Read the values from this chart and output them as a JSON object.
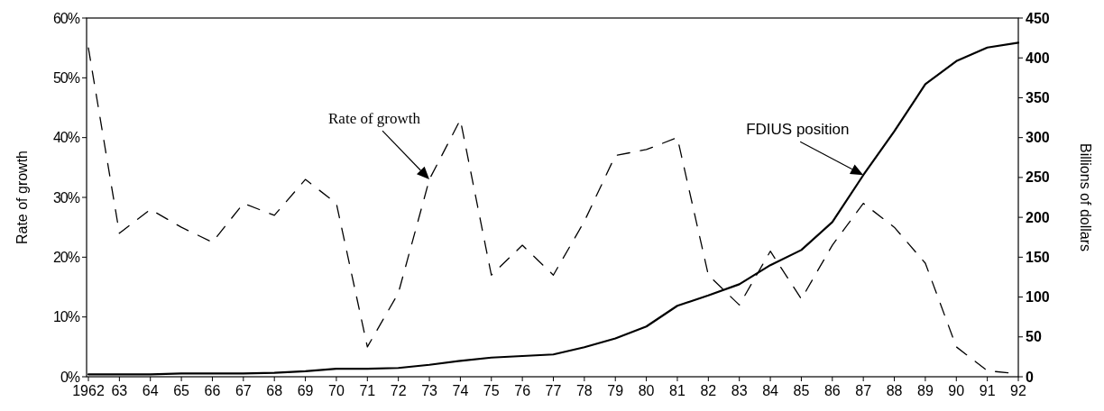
{
  "chart_data": {
    "type": "line",
    "categories": [
      "1962",
      "63",
      "64",
      "65",
      "66",
      "67",
      "68",
      "69",
      "70",
      "71",
      "72",
      "73",
      "74",
      "75",
      "76",
      "77",
      "78",
      "79",
      "80",
      "81",
      "82",
      "83",
      "84",
      "85",
      "86",
      "87",
      "88",
      "89",
      "90",
      "91",
      "92"
    ],
    "series": [
      {
        "name": "Rate of growth",
        "color": "#000000",
        "line_style": "dashed",
        "axis": "y",
        "values": [
          55,
          24,
          28,
          25,
          22.5,
          29,
          27,
          33,
          29,
          5,
          14,
          33,
          43,
          17,
          22,
          17,
          26,
          37,
          38,
          40,
          17,
          12,
          21,
          13,
          22,
          29,
          25,
          19,
          5,
          1,
          0.5
        ]
      },
      {
        "name": "FDIUS position",
        "color": "#000000",
        "line_style": "solid",
        "axis": "y2",
        "values": [
          3,
          3,
          3,
          4,
          4,
          4,
          5,
          7,
          10,
          10,
          11,
          15,
          20,
          24,
          26,
          28,
          37,
          48,
          63,
          89,
          102,
          116,
          140,
          159,
          194,
          253,
          308,
          367,
          396,
          413,
          419
        ]
      }
    ],
    "ylabel": "Rate of growth",
    "y2label": "Billions of dollars",
    "ylim": [
      0,
      60
    ],
    "yticks": [
      {
        "value": 0,
        "label": "0%"
      },
      {
        "value": 10,
        "label": "10%"
      },
      {
        "value": 20,
        "label": "20%"
      },
      {
        "value": 30,
        "label": "30%"
      },
      {
        "value": 40,
        "label": "40%"
      },
      {
        "value": 50,
        "label": "50%"
      },
      {
        "value": 60,
        "label": "60%"
      }
    ],
    "y2lim": [
      0,
      450
    ],
    "y2ticks": [
      0,
      50,
      100,
      150,
      200,
      250,
      300,
      350,
      400,
      450
    ],
    "grid": false,
    "marker": "none"
  }
}
